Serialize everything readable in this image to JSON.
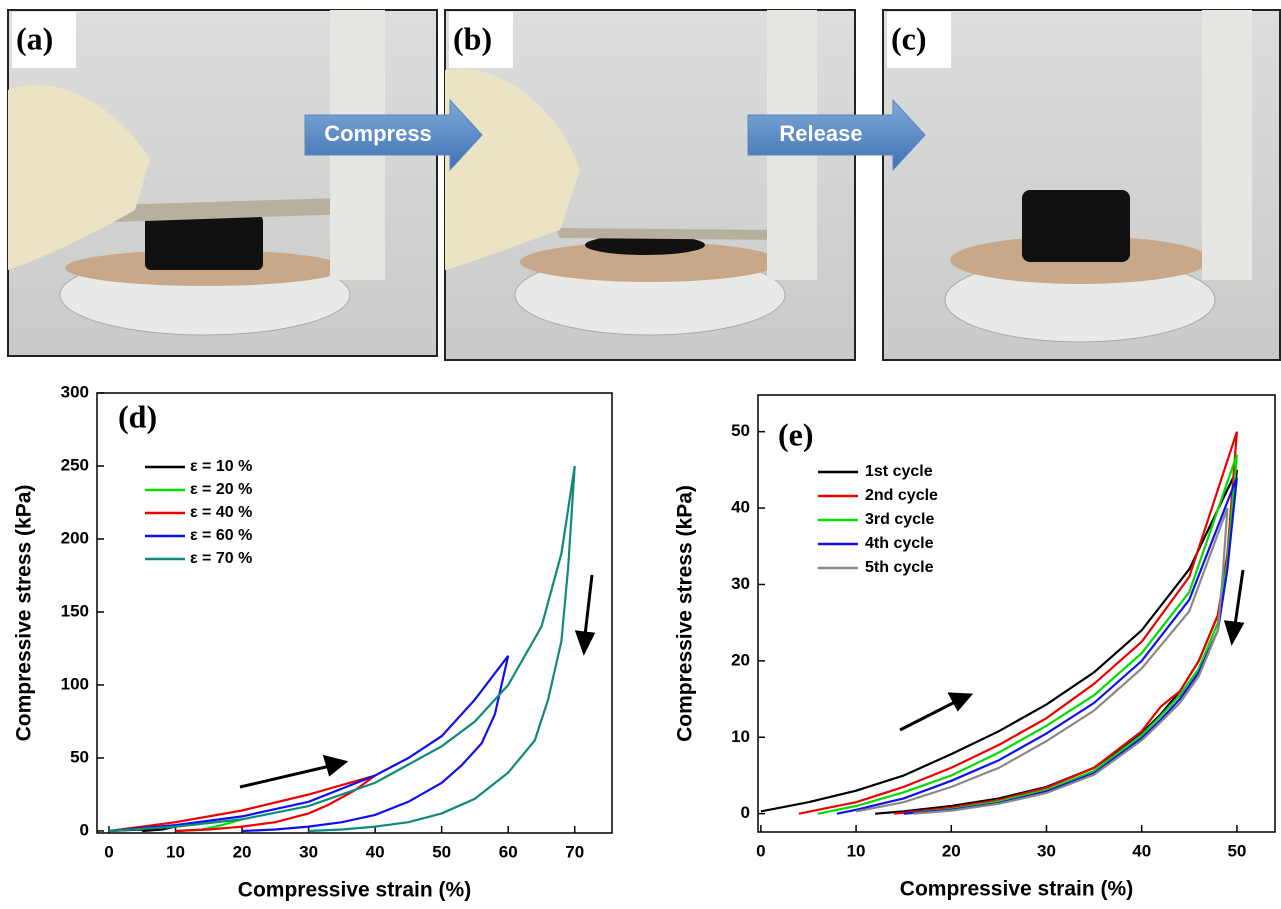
{
  "photos": [
    {
      "label": "(a)"
    },
    {
      "label": "(b)"
    },
    {
      "label": "(c)"
    }
  ],
  "arrows": [
    "Compress",
    "Release"
  ],
  "chart_data": [
    {
      "type": "line",
      "panel_label": "(d)",
      "x_label": "Compressive strain (%)",
      "y_label": "Compressive stress (kPa)",
      "xlim": [
        -1.8,
        75.6
      ],
      "xticks": [
        0,
        10,
        20,
        30,
        40,
        50,
        60,
        70
      ],
      "ylim": [
        -1.4,
        300
      ],
      "yticks": [
        0,
        50,
        100,
        150,
        200,
        250,
        300
      ],
      "series": [
        {
          "name": "ε = 10 %",
          "color": "#000000",
          "x": [
            0,
            5,
            10,
            8,
            5
          ],
          "values": [
            0,
            1,
            3,
            1,
            0
          ]
        },
        {
          "name": "ε = 20 %",
          "color": "#00dd00",
          "x": [
            0,
            10,
            20,
            17,
            14,
            10
          ],
          "values": [
            0,
            3,
            8,
            4,
            1,
            0
          ]
        },
        {
          "name": "ε = 40 %",
          "color": "#ee0000",
          "x": [
            0,
            10,
            20,
            30,
            40,
            37,
            33,
            30,
            25,
            20,
            15,
            10
          ],
          "values": [
            0,
            6,
            14,
            25,
            38,
            28,
            18,
            12,
            6,
            3,
            1,
            0
          ]
        },
        {
          "name": "ε = 60 %",
          "color": "#1010ee",
          "x": [
            0,
            10,
            20,
            30,
            40,
            45,
            50,
            55,
            60,
            59,
            58,
            56,
            53,
            50,
            45,
            40,
            35,
            30,
            25,
            20
          ],
          "values": [
            0,
            4,
            10,
            20,
            38,
            50,
            65,
            90,
            120,
            100,
            80,
            60,
            45,
            33,
            20,
            11,
            6,
            3,
            1,
            0
          ]
        },
        {
          "name": "ε = 70 %",
          "color": "#0f8a7a",
          "x": [
            0,
            10,
            20,
            30,
            40,
            50,
            55,
            60,
            65,
            68,
            70,
            69,
            68,
            66,
            64,
            60,
            55,
            50,
            45,
            40,
            35,
            30
          ],
          "values": [
            0,
            3,
            8,
            17,
            33,
            58,
            75,
            100,
            140,
            190,
            250,
            180,
            130,
            90,
            62,
            40,
            22,
            12,
            6,
            3,
            1,
            0
          ]
        }
      ]
    },
    {
      "type": "line",
      "panel_label": "(e)",
      "x_label": "Compressive strain (%)",
      "y_label": "Compressive stress (kPa)",
      "xlim": [
        -0.3,
        54
      ],
      "xticks": [
        0,
        10,
        20,
        30,
        40,
        50
      ],
      "ylim": [
        -2.4,
        54.8
      ],
      "yticks": [
        0,
        10,
        20,
        30,
        40,
        50
      ],
      "series": [
        {
          "name": "1st cycle",
          "color": "#000000",
          "x": [
            0,
            5,
            10,
            15,
            20,
            25,
            30,
            35,
            40,
            45,
            50,
            49,
            48,
            46,
            44,
            42,
            40,
            35,
            30,
            25,
            20,
            15,
            12
          ],
          "values": [
            0.3,
            1.5,
            3,
            5,
            7.8,
            10.8,
            14.3,
            18.5,
            24,
            32,
            45,
            33,
            26,
            20,
            16,
            13,
            10.5,
            6,
            3.5,
            2,
            1,
            0.3,
            0
          ]
        },
        {
          "name": "2nd cycle",
          "color": "#ee0000",
          "x": [
            4,
            10,
            15,
            20,
            25,
            30,
            35,
            40,
            45,
            50,
            49,
            48,
            46,
            44,
            42,
            40,
            35,
            30,
            25,
            20,
            14
          ],
          "values": [
            0,
            1.5,
            3.5,
            6,
            9,
            12.5,
            17,
            22.5,
            31,
            50,
            34,
            26,
            20,
            16,
            14,
            10.8,
            6,
            3.4,
            1.8,
            0.8,
            0
          ]
        },
        {
          "name": "3rd cycle",
          "color": "#00dd00",
          "x": [
            6,
            10,
            15,
            20,
            25,
            30,
            35,
            40,
            45,
            50,
            49,
            48,
            46,
            44,
            42,
            40,
            35,
            30,
            25,
            20,
            15
          ],
          "values": [
            0,
            1,
            2.8,
            5,
            8,
            11.5,
            15.5,
            21,
            29,
            47,
            33,
            25,
            19,
            15.5,
            12.8,
            10.3,
            5.6,
            3.1,
            1.6,
            0.6,
            0
          ]
        },
        {
          "name": "4th cycle",
          "color": "#1010ee",
          "x": [
            8,
            10,
            15,
            20,
            25,
            30,
            35,
            40,
            45,
            50,
            49,
            48,
            46,
            44,
            42,
            40,
            35,
            30,
            25,
            20,
            15
          ],
          "values": [
            0,
            0.5,
            2,
            4.3,
            7,
            10.5,
            14.5,
            20,
            28,
            44,
            32,
            24,
            18.5,
            15,
            12.3,
            9.9,
            5.3,
            2.9,
            1.4,
            0.5,
            0
          ]
        },
        {
          "name": "5th cycle",
          "color": "#888888",
          "x": [
            10,
            15,
            20,
            25,
            30,
            35,
            40,
            45,
            49,
            48.5,
            48,
            46,
            44,
            42,
            40,
            35,
            30,
            25,
            20,
            16
          ],
          "values": [
            0.3,
            1.5,
            3.5,
            6,
            9.5,
            13.5,
            19,
            26.5,
            40,
            31,
            24,
            18,
            14.5,
            12,
            9.6,
            5.1,
            2.7,
            1.3,
            0.4,
            0
          ]
        }
      ]
    }
  ]
}
